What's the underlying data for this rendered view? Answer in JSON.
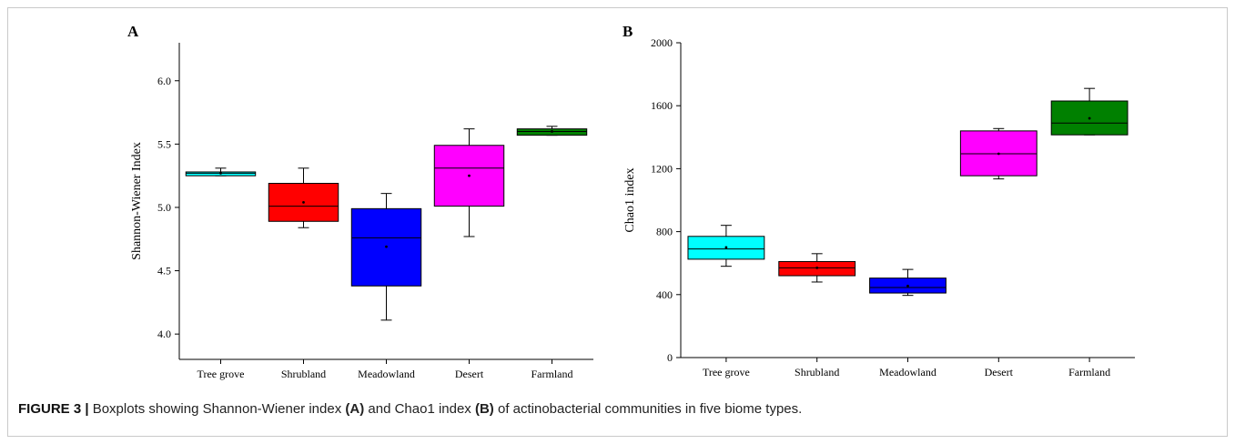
{
  "caption": {
    "figure_label": "FIGURE 3 |",
    "t1": " Boxplots showing Shannon-Wiener index ",
    "b1": "(A)",
    "t2": " and Chao1 index ",
    "b2": "(B)",
    "t3": " of actinobacterial communities in five biome types."
  },
  "colors": {
    "Tree grove": "#00ffff",
    "Shrubland": "#ff0000",
    "Meadowland": "#0000ff",
    "Desert": "#ff00ff",
    "Farmland": "#008000"
  },
  "chart_data": [
    {
      "type": "box",
      "panel_label": "A",
      "title": "",
      "xlabel": "",
      "ylabel": "Shannon-Wiener Index",
      "ylim": [
        3.8,
        6.3
      ],
      "yticks": [
        "4.0",
        "4.5",
        "5.0",
        "5.5",
        "6.0"
      ],
      "categories": [
        "Tree grove",
        "Shrubland",
        "Meadowland",
        "Desert",
        "Farmland"
      ],
      "boxes": [
        {
          "min": 5.25,
          "q1": 5.25,
          "median": 5.27,
          "q3": 5.28,
          "max": 5.31,
          "mean": 5.27
        },
        {
          "min": 4.84,
          "q1": 4.89,
          "median": 5.01,
          "q3": 5.19,
          "max": 5.31,
          "mean": 5.04
        },
        {
          "min": 4.11,
          "q1": 4.38,
          "median": 4.76,
          "q3": 4.99,
          "max": 5.11,
          "mean": 4.69
        },
        {
          "min": 4.77,
          "q1": 5.01,
          "median": 5.31,
          "q3": 5.49,
          "max": 5.62,
          "mean": 5.25
        },
        {
          "min": 5.57,
          "q1": 5.57,
          "median": 5.6,
          "q3": 5.62,
          "max": 5.64,
          "mean": 5.6
        }
      ]
    },
    {
      "type": "box",
      "panel_label": "B",
      "title": "",
      "xlabel": "",
      "ylabel": "Chao1 index",
      "ylim": [
        0,
        2000
      ],
      "yticks": [
        "0",
        "400",
        "800",
        "1200",
        "1600",
        "2000"
      ],
      "categories": [
        "Tree grove",
        "Shrubland",
        "Meadowland",
        "Desert",
        "Farmland"
      ],
      "boxes": [
        {
          "min": 580,
          "q1": 625,
          "median": 690,
          "q3": 770,
          "max": 840,
          "mean": 700
        },
        {
          "min": 480,
          "q1": 520,
          "median": 570,
          "q3": 610,
          "max": 660,
          "mean": 570
        },
        {
          "min": 395,
          "q1": 410,
          "median": 445,
          "q3": 505,
          "max": 560,
          "mean": 455
        },
        {
          "min": 1135,
          "q1": 1155,
          "median": 1295,
          "q3": 1440,
          "max": 1455,
          "mean": 1295
        },
        {
          "min": 1415,
          "q1": 1415,
          "median": 1490,
          "q3": 1630,
          "max": 1710,
          "mean": 1520
        }
      ]
    }
  ]
}
